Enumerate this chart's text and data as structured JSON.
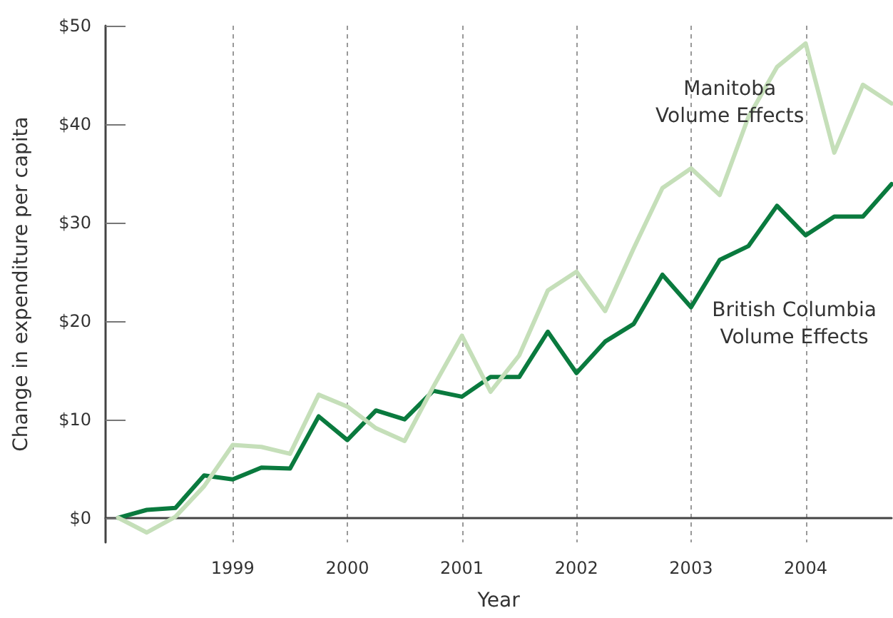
{
  "chart_data": {
    "type": "line",
    "xlabel": "Year",
    "ylabel": "Change in expenditure per capita",
    "x": [
      1998,
      1998.25,
      1998.5,
      1998.75,
      1999,
      1999.25,
      1999.5,
      1999.75,
      2000,
      2000.25,
      2000.5,
      2000.75,
      2001,
      2001.25,
      2001.5,
      2001.75,
      2002,
      2002.25,
      2002.5,
      2002.75,
      2003,
      2003.25,
      2003.5,
      2003.75,
      2004,
      2004.25,
      2004.5,
      2004.75
    ],
    "series": [
      {
        "name": "Manitoba Volume Effects",
        "color": "#c5dfb9",
        "values": [
          0,
          -1.5,
          0.1,
          3.2,
          7.4,
          7.2,
          6.5,
          12.5,
          11.3,
          9.1,
          7.8,
          13.3,
          18.5,
          12.8,
          16.5,
          23.1,
          25.0,
          21.0,
          27.4,
          33.5,
          35.5,
          32.8,
          40.7,
          45.8,
          48.2,
          37.1,
          44.0,
          42.1
        ]
      },
      {
        "name": "British Columbia Volume Effects",
        "color": "#0a7a3e",
        "values": [
          0,
          0.8,
          1.0,
          4.3,
          3.9,
          5.1,
          5.0,
          10.3,
          7.9,
          10.9,
          10.0,
          12.9,
          12.3,
          14.3,
          14.3,
          18.9,
          14.7,
          17.9,
          19.7,
          24.7,
          21.4,
          26.2,
          27.6,
          31.7,
          28.7,
          30.6,
          30.6,
          33.9
        ]
      }
    ],
    "xlim": [
      1997.89,
      2004.75
    ],
    "xticks": [
      1999,
      2000,
      2001,
      2002,
      2003,
      2004
    ],
    "ylim": [
      -2.5,
      50
    ],
    "yticks": [
      {
        "value": 0,
        "label": "$0"
      },
      {
        "value": 10,
        "label": "$10"
      },
      {
        "value": 20,
        "label": "$20"
      },
      {
        "value": 30,
        "label": "$30"
      },
      {
        "value": 40,
        "label": "$40"
      },
      {
        "value": 50,
        "label": "$50"
      }
    ],
    "grid": "x",
    "legend": false,
    "marker": "none",
    "line_style": "solid"
  }
}
